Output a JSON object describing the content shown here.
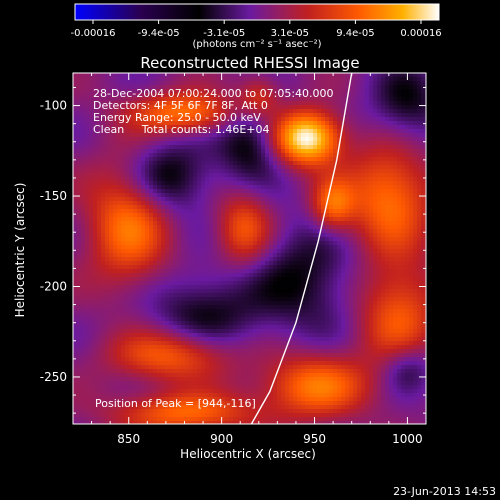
{
  "chart_data": {
    "type": "heatmap",
    "title": "Reconstructed RHESSI Image",
    "xlabel": "Heliocentric X (arcsec)",
    "ylabel": "Heliocentric Y (arcsec)",
    "xlim": [
      820,
      1010
    ],
    "ylim": [
      -276,
      -82
    ],
    "x_ticks": [
      850,
      900,
      950,
      1000
    ],
    "y_ticks": [
      -100,
      -150,
      -200,
      -250
    ],
    "colorbar": {
      "range": [
        -0.00016,
        0.00016
      ],
      "tick_labels": [
        "-0.00016",
        "-9.4e-05",
        "-3.1e-05",
        "3.1e-05",
        "9.4e-05",
        "0.00016"
      ],
      "unit_label": "(photons cm⁻² s⁻¹ asec⁻²)",
      "colors": [
        "#0000ff",
        "#2a0050",
        "#000000",
        "#6a1aa0",
        "#c02020",
        "#ff5a00",
        "#ffb000",
        "#ffffff"
      ]
    },
    "annotations": [
      "28-Dec-2004 07:00:24.000 to 07:05:40.000",
      "Detectors: 4F 5F 6F 7F 8F, Att 0",
      "Energy Range: 25.0 - 50.0 keV",
      "Clean     Total counts: 1.46E+04"
    ],
    "peak_label": "Position of Peak = [944,-116]",
    "peak": [
      944,
      -116
    ],
    "limb": [
      [
        970,
        -82
      ],
      [
        962,
        -130
      ],
      [
        952,
        -175
      ],
      [
        940,
        -220
      ],
      [
        926,
        -258
      ],
      [
        916,
        -276
      ]
    ],
    "features": [
      {
        "x": 946,
        "y": -118,
        "amp": 1.0,
        "sx": 12,
        "sy": 10
      },
      {
        "x": 880,
        "y": -104,
        "amp": 0.55,
        "sx": 20,
        "sy": 8
      },
      {
        "x": 850,
        "y": -165,
        "amp": 0.55,
        "sx": 15,
        "sy": 24
      },
      {
        "x": 912,
        "y": -168,
        "amp": 0.45,
        "sx": 10,
        "sy": 14
      },
      {
        "x": 990,
        "y": -150,
        "amp": 0.55,
        "sx": 16,
        "sy": 20
      },
      {
        "x": 960,
        "y": -155,
        "amp": 0.5,
        "sx": 8,
        "sy": 10
      },
      {
        "x": 995,
        "y": -215,
        "amp": 0.45,
        "sx": 15,
        "sy": 22
      },
      {
        "x": 873,
        "y": -238,
        "amp": 0.5,
        "sx": 22,
        "sy": 10
      },
      {
        "x": 950,
        "y": -255,
        "amp": 0.55,
        "sx": 20,
        "sy": 12
      },
      {
        "x": 880,
        "y": -270,
        "amp": 0.5,
        "sx": 26,
        "sy": 8
      },
      {
        "x": 920,
        "y": -95,
        "amp": 0.35,
        "sx": 8,
        "sy": 8
      },
      {
        "x": 870,
        "y": -140,
        "amp": -0.4,
        "sx": 16,
        "sy": 14
      },
      {
        "x": 915,
        "y": -120,
        "amp": -0.35,
        "sx": 12,
        "sy": 16
      },
      {
        "x": 945,
        "y": -195,
        "amp": -0.3,
        "sx": 20,
        "sy": 22
      },
      {
        "x": 890,
        "y": -215,
        "amp": -0.3,
        "sx": 22,
        "sy": 16
      },
      {
        "x": 1000,
        "y": -245,
        "amp": -0.3,
        "sx": 10,
        "sy": 10
      },
      {
        "x": 1000,
        "y": -100,
        "amp": -0.3,
        "sx": 14,
        "sy": 16
      }
    ]
  },
  "footer": {
    "date": "23-Jun-2013 14:53"
  }
}
